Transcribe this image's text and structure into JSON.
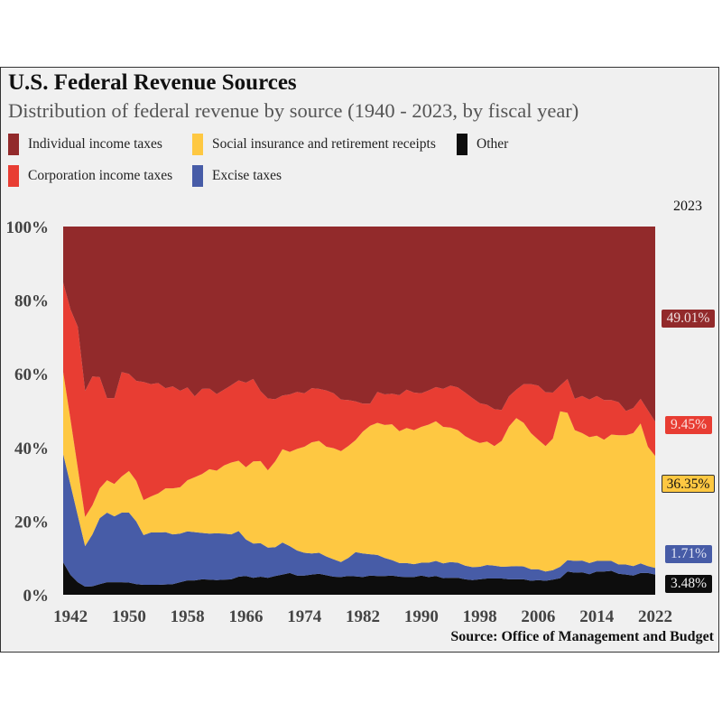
{
  "title": "U.S. Federal Revenue Sources",
  "subtitle": "Distribution of  federal revenue by source (1940 - 2023, by fiscal year)",
  "source": "Source: Office of Management and Budget",
  "legend": [
    {
      "label": "Individual income taxes",
      "color": "#922a2b"
    },
    {
      "label": "Social insurance and retirement receipts",
      "color": "#fec842"
    },
    {
      "label": "Other",
      "color": "#0d0d0d"
    },
    {
      "label": "Corporation income taxes",
      "color": "#e83d33"
    },
    {
      "label": "Excise taxes",
      "color": "#475ca7"
    }
  ],
  "highlight_year": "2023",
  "annotations": [
    {
      "series": "Individual income taxes",
      "text": "49.01%",
      "color": "#922a2b",
      "text_color": "#f0e0e0"
    },
    {
      "series": "Corporation income taxes",
      "text": "9.45%",
      "color": "#e83d33",
      "text_color": "#fbe0de"
    },
    {
      "series": "Social insurance and retirement receipts",
      "text": "36.35%",
      "color": "#fec842",
      "text_color": "#111111"
    },
    {
      "series": "Excise taxes",
      "text": "1.71%",
      "color": "#475ca7",
      "text_color": "#e0e4f4"
    },
    {
      "series": "Other",
      "text": "3.48%",
      "color": "#0d0d0d",
      "text_color": "#f0f0f0"
    }
  ],
  "chart_data": {
    "type": "area",
    "stacked": true,
    "normalized": true,
    "title": "U.S. Federal Revenue Sources",
    "subtitle": "Distribution of federal revenue by source (1940 - 2023, by fiscal year)",
    "xlabel": "",
    "ylabel": "",
    "x_ticks": [
      "1942",
      "1950",
      "1958",
      "1966",
      "1974",
      "1982",
      "1990",
      "1998",
      "2006",
      "2014",
      "2022"
    ],
    "y_ticks": [
      "0%",
      "20%",
      "40%",
      "60%",
      "80%",
      "100%"
    ],
    "ylim": [
      0,
      100
    ],
    "xlim": [
      1941,
      2022
    ],
    "grid": false,
    "legend_position": "top",
    "x": [
      1941,
      1942,
      1943,
      1944,
      1945,
      1946,
      1947,
      1948,
      1949,
      1950,
      1951,
      1952,
      1953,
      1954,
      1955,
      1956,
      1957,
      1958,
      1959,
      1960,
      1961,
      1962,
      1963,
      1964,
      1965,
      1966,
      1967,
      1968,
      1969,
      1970,
      1971,
      1972,
      1973,
      1974,
      1975,
      1976,
      1977,
      1978,
      1979,
      1980,
      1981,
      1982,
      1983,
      1984,
      1985,
      1986,
      1987,
      1988,
      1989,
      1990,
      1991,
      1992,
      1993,
      1994,
      1995,
      1996,
      1997,
      1998,
      1999,
      2000,
      2001,
      2002,
      2003,
      2004,
      2005,
      2006,
      2007,
      2008,
      2009,
      2010,
      2011,
      2012,
      2013,
      2014,
      2015,
      2016,
      2017,
      2018,
      2019,
      2020,
      2021,
      2022
    ],
    "stack_order_bottom_to_top": [
      "Other",
      "Excise taxes",
      "Social insurance and retirement receipts",
      "Corporation income taxes",
      "Individual income taxes"
    ],
    "series": [
      {
        "name": "Other",
        "color": "#0d0d0d",
        "values": [
          8.8,
          5.4,
          3.4,
          2.2,
          2.3,
          2.9,
          3.4,
          3.4,
          3.4,
          3.3,
          2.9,
          2.7,
          2.7,
          2.7,
          2.8,
          2.9,
          3.4,
          3.9,
          3.9,
          4.2,
          4.1,
          4.0,
          4.1,
          4.2,
          4.9,
          5.1,
          4.6,
          4.9,
          4.6,
          5.1,
          5.5,
          5.9,
          5.2,
          5.2,
          5.5,
          5.7,
          5.3,
          4.9,
          4.8,
          5.1,
          5.0,
          4.8,
          5.2,
          5.1,
          5.1,
          5.2,
          4.9,
          4.8,
          4.8,
          5.2,
          4.8,
          5.1,
          4.5,
          4.6,
          4.6,
          4.2,
          4.0,
          4.2,
          4.4,
          4.4,
          4.4,
          4.2,
          4.2,
          4.2,
          3.8,
          4.0,
          3.8,
          4.1,
          4.5,
          6.3,
          6.0,
          6.1,
          5.6,
          6.3,
          6.3,
          6.5,
          5.7,
          5.5,
          5.2,
          5.9,
          5.9,
          5.5
        ]
      },
      {
        "name": "Excise taxes",
        "color": "#475ca7",
        "values": [
          29.4,
          24.5,
          18.1,
          11.0,
          14.1,
          17.9,
          18.9,
          17.9,
          18.9,
          19.0,
          17.0,
          13.5,
          14.2,
          14.2,
          14.2,
          13.5,
          13.2,
          13.3,
          13.1,
          12.6,
          12.5,
          12.7,
          12.5,
          12.2,
          12.4,
          9.9,
          9.3,
          9.1,
          8.2,
          7.8,
          8.7,
          7.3,
          6.8,
          6.2,
          5.7,
          5.7,
          5.1,
          4.7,
          4.1,
          4.9,
          6.6,
          6.4,
          5.8,
          5.7,
          4.9,
          4.2,
          3.7,
          3.8,
          3.5,
          3.5,
          3.9,
          4.1,
          4.0,
          4.3,
          4.1,
          3.7,
          3.5,
          3.4,
          3.7,
          3.5,
          3.2,
          3.5,
          3.6,
          3.5,
          3.1,
          2.9,
          2.5,
          2.6,
          3.1,
          3.1,
          3.2,
          3.2,
          3.0,
          2.9,
          2.9,
          2.7,
          2.5,
          2.7,
          2.6,
          2.6,
          1.9,
          1.8
        ]
      },
      {
        "name": "Social insurance and retirement receipts",
        "color": "#fec842",
        "values": [
          22.3,
          17.7,
          12.9,
          7.9,
          7.9,
          8.1,
          8.8,
          8.8,
          9.8,
          11.3,
          11.0,
          9.5,
          9.8,
          10.6,
          11.9,
          12.5,
          12.6,
          13.9,
          14.9,
          16.0,
          17.5,
          17.0,
          18.5,
          19.5,
          19.1,
          19.6,
          22.3,
          22.3,
          21.0,
          23.3,
          25.3,
          25.6,
          27.6,
          28.8,
          30.2,
          30.4,
          29.8,
          30.2,
          30.1,
          30.4,
          30.4,
          33.1,
          34.9,
          35.9,
          36.1,
          36.9,
          35.8,
          36.7,
          36.4,
          36.9,
          37.5,
          37.9,
          37.1,
          36.5,
          36.0,
          35.2,
          34.5,
          33.6,
          33.5,
          32.5,
          34.2,
          38.0,
          40.2,
          39.0,
          37.0,
          35.2,
          34.1,
          35.7,
          42.2,
          40.0,
          35.5,
          34.6,
          34.2,
          34.0,
          32.9,
          34.3,
          35.1,
          35.1,
          36.1,
          38.0,
          32.4,
          30.4
        ]
      },
      {
        "name": "Corporation income taxes",
        "color": "#e83d33",
        "values": [
          24.3,
          29.9,
          38.4,
          34.3,
          35.0,
          30.2,
          22.3,
          23.3,
          28.4,
          26.4,
          27.2,
          32.1,
          30.5,
          30.0,
          27.2,
          27.7,
          26.2,
          25.2,
          22.0,
          23.1,
          21.9,
          20.8,
          20.6,
          21.0,
          21.8,
          23.0,
          22.4,
          19.0,
          19.5,
          16.9,
          14.6,
          15.6,
          15.5,
          14.5,
          14.7,
          14.1,
          15.3,
          14.9,
          14.0,
          12.5,
          10.5,
          7.6,
          6.0,
          8.4,
          8.3,
          8.3,
          9.8,
          10.4,
          10.2,
          9.1,
          9.3,
          9.3,
          10.3,
          11.4,
          11.6,
          11.8,
          11.4,
          10.8,
          10.0,
          10.0,
          8.4,
          8.2,
          7.7,
          10.5,
          13.3,
          14.7,
          14.6,
          12.5,
          7.0,
          9.2,
          8.5,
          10.1,
          10.2,
          10.8,
          10.8,
          9.4,
          9.0,
          6.6,
          6.8,
          6.7,
          9.9,
          9.3
        ]
      },
      {
        "name": "Individual income taxes",
        "color": "#922a2b",
        "values": [
          15.2,
          22.5,
          27.2,
          44.6,
          40.7,
          40.9,
          46.6,
          46.6,
          39.5,
          40.0,
          41.9,
          42.2,
          42.8,
          42.5,
          43.9,
          43.4,
          44.6,
          43.7,
          46.1,
          44.1,
          44.0,
          45.5,
          44.3,
          43.1,
          41.8,
          42.4,
          41.4,
          44.7,
          46.7,
          46.9,
          45.9,
          45.6,
          44.9,
          45.3,
          43.9,
          44.1,
          44.5,
          45.3,
          47.0,
          47.1,
          47.5,
          48.1,
          48.1,
          44.9,
          45.6,
          45.4,
          45.8,
          44.3,
          45.1,
          45.3,
          44.5,
          43.6,
          44.1,
          43.2,
          43.7,
          45.1,
          46.6,
          48.0,
          48.4,
          49.6,
          49.8,
          46.1,
          44.3,
          42.8,
          42.8,
          43.2,
          45.0,
          45.1,
          43.2,
          41.4,
          46.8,
          46.0,
          47.0,
          46.0,
          47.1,
          47.1,
          47.7,
          50.1,
          49.3,
          46.8,
          49.9,
          53.0
        ]
      }
    ],
    "annotations_2023": [
      {
        "series": "Individual income taxes",
        "value": 49.01
      },
      {
        "series": "Corporation income taxes",
        "value": 9.45
      },
      {
        "series": "Social insurance and retirement receipts",
        "value": 36.35
      },
      {
        "series": "Excise taxes",
        "value": 1.71
      },
      {
        "series": "Other",
        "value": 3.48
      }
    ]
  }
}
